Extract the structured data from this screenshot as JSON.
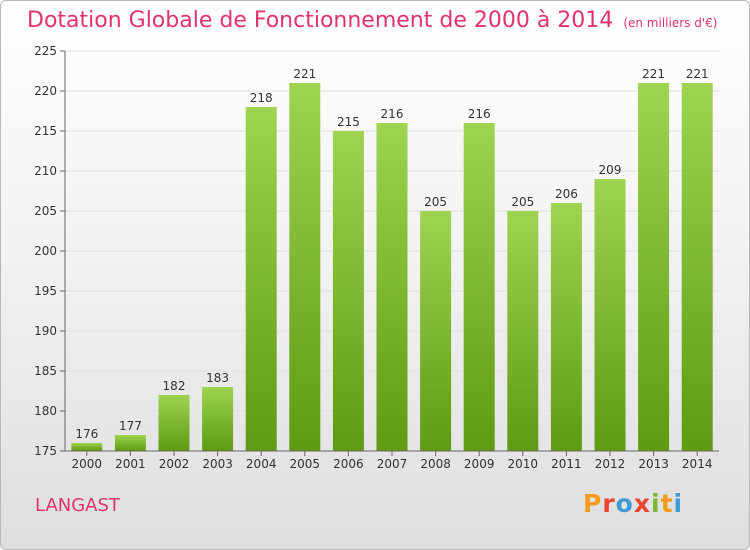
{
  "header": {
    "title": "Dotation Globale de Fonctionnement de 2000 à 2014",
    "subtitle": "(en milliers d'€)"
  },
  "footer": {
    "place": "LANGAST",
    "logo": "Proxiti",
    "logo_colors": [
      "#f39c1f",
      "#e8452f",
      "#3f9ad6",
      "#e8452f",
      "#7cb82f",
      "#f39c1f",
      "#3f9ad6"
    ]
  },
  "colors": {
    "title": "#e2336b",
    "bar_light": "#9ed450",
    "bar_dark": "#5e9a12",
    "axis": "#666666",
    "grid": "#e0e0e0"
  },
  "chart_data": {
    "type": "bar",
    "categories": [
      "2000",
      "2001",
      "2002",
      "2003",
      "2004",
      "2005",
      "2006",
      "2007",
      "2008",
      "2009",
      "2010",
      "2011",
      "2012",
      "2013",
      "2014"
    ],
    "values": [
      176,
      177,
      182,
      183,
      218,
      221,
      215,
      216,
      205,
      216,
      205,
      206,
      209,
      221,
      221
    ],
    "ylim": [
      175,
      225
    ],
    "yticks": [
      175,
      180,
      185,
      190,
      195,
      200,
      205,
      210,
      215,
      220,
      225
    ],
    "xlabel": "",
    "ylabel": "",
    "grid": true
  }
}
